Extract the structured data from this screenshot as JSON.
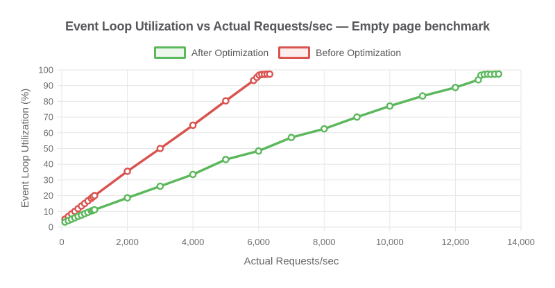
{
  "chart_data": {
    "type": "line",
    "title": "Event Loop Utilization vs Actual Requests/sec — Empty page benchmark",
    "xlabel": "Actual Requests/sec",
    "ylabel": "Event Loop Utilization (%)",
    "xlim": [
      0,
      14000
    ],
    "ylim": [
      0,
      100
    ],
    "x_ticks": [
      0,
      2000,
      4000,
      6000,
      8000,
      10000,
      12000,
      14000
    ],
    "x_tick_labels": [
      "0",
      "2,000",
      "4,000",
      "6,000",
      "8,000",
      "10,000",
      "12,000",
      "14,000"
    ],
    "y_ticks": [
      0,
      10,
      20,
      30,
      40,
      50,
      60,
      70,
      80,
      90,
      100
    ],
    "y_tick_labels": [
      "0",
      "10",
      "20",
      "30",
      "40",
      "50",
      "60",
      "70",
      "80",
      "90",
      "100"
    ],
    "grid": true,
    "legend_position": "top",
    "colors": {
      "grid": "#e6e6e6",
      "tick_text": "#6f6f6f",
      "axis_title_text": "#666666",
      "title_text": "#57585b",
      "background": "#ffffff"
    },
    "series": [
      {
        "name": "After Optimization",
        "color": "#5cb85c",
        "legend_fill": "#edf7ed",
        "points": [
          [
            100,
            3.2
          ],
          [
            200,
            4.1
          ],
          [
            300,
            5.0
          ],
          [
            400,
            5.9
          ],
          [
            500,
            6.8
          ],
          [
            600,
            7.6
          ],
          [
            700,
            8.5
          ],
          [
            800,
            9.4
          ],
          [
            900,
            10.2
          ],
          [
            950,
            10.6
          ],
          [
            1000,
            11.0
          ],
          [
            2000,
            18.6
          ],
          [
            3000,
            26.0
          ],
          [
            4000,
            33.5
          ],
          [
            5000,
            43.0
          ],
          [
            6000,
            48.4
          ],
          [
            7000,
            57.0
          ],
          [
            8000,
            62.5
          ],
          [
            9000,
            70.0
          ],
          [
            10000,
            77.0
          ],
          [
            11000,
            83.4
          ],
          [
            12000,
            88.8
          ],
          [
            12700,
            93.7
          ],
          [
            12780,
            96.6
          ],
          [
            12880,
            97.1
          ],
          [
            12980,
            97.3
          ],
          [
            13080,
            97.2
          ],
          [
            13200,
            97.3
          ],
          [
            13320,
            97.4
          ]
        ]
      },
      {
        "name": "Before Optimization",
        "color": "#d9534f",
        "legend_fill": "#fcecec",
        "points": [
          [
            100,
            5.0
          ],
          [
            200,
            6.7
          ],
          [
            300,
            8.4
          ],
          [
            400,
            10.0
          ],
          [
            500,
            11.7
          ],
          [
            600,
            13.4
          ],
          [
            700,
            15.0
          ],
          [
            800,
            16.7
          ],
          [
            900,
            18.3
          ],
          [
            950,
            19.2
          ],
          [
            1000,
            20.0
          ],
          [
            2000,
            35.5
          ],
          [
            3000,
            50.0
          ],
          [
            4000,
            64.8
          ],
          [
            5000,
            80.3
          ],
          [
            5850,
            93.3
          ],
          [
            5950,
            95.3
          ],
          [
            6020,
            96.7
          ],
          [
            6100,
            97.1
          ],
          [
            6180,
            97.2
          ],
          [
            6260,
            97.3
          ],
          [
            6340,
            97.3
          ]
        ]
      }
    ]
  }
}
